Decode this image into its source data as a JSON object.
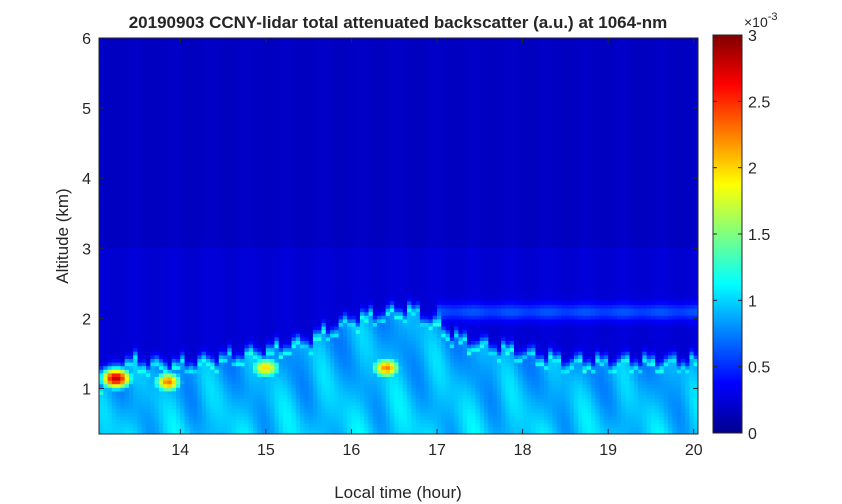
{
  "chart_data": {
    "type": "heatmap",
    "title": "20190903 CCNY-lidar total attenuated backscatter (a.u.) at 1064-nm",
    "xlabel": "Local time (hour)",
    "ylabel": "Altitude (km)",
    "xlim": [
      13.05,
      20.05
    ],
    "ylim": [
      0.35,
      6.0
    ],
    "x_ticks": [
      14,
      15,
      16,
      17,
      18,
      19,
      20
    ],
    "y_ticks": [
      1,
      2,
      3,
      4,
      5,
      6
    ],
    "colorbar": {
      "colormap": "jet",
      "limits": [
        0,
        3
      ],
      "ticks": [
        "0",
        "0.5",
        "1",
        "1.5",
        "2",
        "2.5",
        "3"
      ],
      "exponent_base": "×10",
      "exponent_power": "-3"
    },
    "features": {
      "boundary_layer_top_km": [
        {
          "time": 13.05,
          "top": 1.0
        },
        {
          "time": 13.3,
          "top": 1.3
        },
        {
          "time": 14.0,
          "top": 1.25
        },
        {
          "time": 15.0,
          "top": 1.45
        },
        {
          "time": 15.5,
          "top": 1.6
        },
        {
          "time": 16.0,
          "top": 1.9
        },
        {
          "time": 16.7,
          "top": 2.05
        },
        {
          "time": 17.3,
          "top": 1.6
        },
        {
          "time": 18.5,
          "top": 1.3
        },
        {
          "time": 20.05,
          "top": 1.3
        }
      ],
      "residual_layer_km": {
        "time_start": 17.0,
        "time_end": 20.05,
        "altitude": 2.1
      },
      "peak_backscatter": [
        {
          "time": 13.25,
          "altitude": 1.15,
          "value": 3.0
        },
        {
          "time": 13.85,
          "altitude": 1.1,
          "value": 2.2
        },
        {
          "time": 15.0,
          "altitude": 1.3,
          "value": 2.1
        },
        {
          "time": 16.4,
          "altitude": 1.3,
          "value": 2.3
        }
      ],
      "free_troposphere_value": 0.2
    }
  }
}
